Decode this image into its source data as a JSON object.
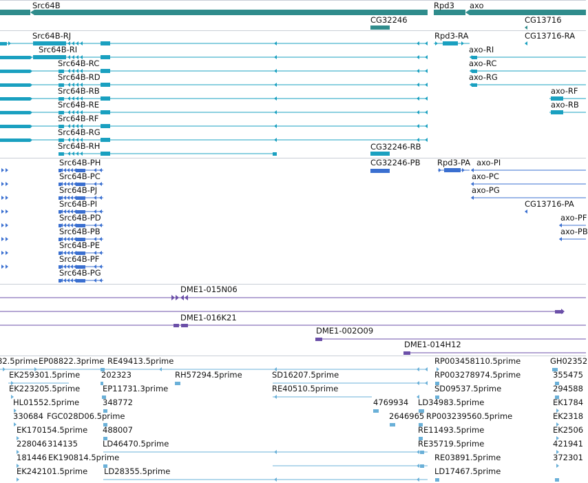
{
  "colors": {
    "gene": "#2f8c8c",
    "transcript": "#1aa0c0",
    "protein": "#3a6fd0",
    "clone": "#6b4fa8",
    "est": "#6ab0d8",
    "separator": "#c9ced6",
    "text": "#111111"
  },
  "tracks": {
    "genes": {
      "labels": [
        {
          "name": "src64b-gene-label",
          "text": "Src64B"
        },
        {
          "name": "rpd3-gene-label",
          "text": "Rpd3"
        },
        {
          "name": "axo-gene-label",
          "text": "axo"
        },
        {
          "name": "cg32246-gene-label",
          "text": "CG32246"
        },
        {
          "name": "cg13716-gene-label",
          "text": "CG13716"
        }
      ]
    },
    "transcripts": {
      "labels": [
        {
          "name": "src64b-rj-label",
          "text": "Src64B-RJ"
        },
        {
          "name": "src64b-ri-label",
          "text": "Src64B-RI"
        },
        {
          "name": "src64b-rc-label",
          "text": "Src64B-RC"
        },
        {
          "name": "src64b-rd-label",
          "text": "Src64B-RD"
        },
        {
          "name": "src64b-rb-label",
          "text": "Src64B-RB"
        },
        {
          "name": "src64b-re-label",
          "text": "Src64B-RE"
        },
        {
          "name": "src64b-rf-label",
          "text": "Src64B-RF"
        },
        {
          "name": "src64b-rg-label",
          "text": "Src64B-RG"
        },
        {
          "name": "src64b-rh-label",
          "text": "Src64B-RH"
        },
        {
          "name": "rpd3-ra-label",
          "text": "Rpd3-RA"
        },
        {
          "name": "cg13716-ra-label",
          "text": "CG13716-RA"
        },
        {
          "name": "axo-ri-label",
          "text": "axo-RI"
        },
        {
          "name": "axo-rc-label",
          "text": "axo-RC"
        },
        {
          "name": "axo-rg-label",
          "text": "axo-RG"
        },
        {
          "name": "axo-rf-label",
          "text": "axo-RF"
        },
        {
          "name": "axo-rb-label",
          "text": "axo-RB"
        },
        {
          "name": "cg32246-rb-label",
          "text": "CG32246-RB"
        }
      ]
    },
    "proteins": {
      "labels": [
        {
          "name": "src64b-ph-label",
          "text": "Src64B-PH"
        },
        {
          "name": "src64b-pc-label",
          "text": "Src64B-PC"
        },
        {
          "name": "src64b-pj-label",
          "text": "Src64B-PJ"
        },
        {
          "name": "src64b-pi-label",
          "text": "Src64B-PI"
        },
        {
          "name": "src64b-pd-label",
          "text": "Src64B-PD"
        },
        {
          "name": "src64b-pb-label",
          "text": "Src64B-PB"
        },
        {
          "name": "src64b-pe-label",
          "text": "Src64B-PE"
        },
        {
          "name": "src64b-pf-label",
          "text": "Src64B-PF"
        },
        {
          "name": "src64b-pg-label",
          "text": "Src64B-PG"
        },
        {
          "name": "cg32246-pb-label",
          "text": "CG32246-PB"
        },
        {
          "name": "rpd3-pa-label",
          "text": "Rpd3-PA"
        },
        {
          "name": "axo-pi-label",
          "text": "axo-PI"
        },
        {
          "name": "axo-pc-label",
          "text": "axo-PC"
        },
        {
          "name": "axo-pg-label",
          "text": "axo-PG"
        },
        {
          "name": "cg13716-pa-label",
          "text": "CG13716-PA"
        },
        {
          "name": "axo-pf-label",
          "text": "axo-PF"
        },
        {
          "name": "axo-pb-label",
          "text": "axo-PB"
        }
      ]
    },
    "clones": {
      "labels": [
        {
          "name": "dme1-015n06-label",
          "text": "DME1-015N06"
        },
        {
          "name": "dme1-016k21-label",
          "text": "DME1-016K21"
        },
        {
          "name": "dme1-002o09-label",
          "text": "DME1-002O09"
        },
        {
          "name": "dme1-014h12-label",
          "text": "DME1-014H12"
        }
      ]
    },
    "ests": {
      "labels": [
        {
          "name": "est-label",
          "text": "82.5prime"
        },
        {
          "name": "est-label",
          "text": "EP08822.3prime"
        },
        {
          "name": "est-label",
          "text": "RE49413.5prime"
        },
        {
          "name": "est-label",
          "text": "RP003458110.5prime"
        },
        {
          "name": "est-label",
          "text": "GH02352"
        },
        {
          "name": "est-label",
          "text": "EK259301.5prime"
        },
        {
          "name": "est-label",
          "text": "202323"
        },
        {
          "name": "est-label",
          "text": "RH57294.5prime"
        },
        {
          "name": "est-label",
          "text": "SD16207.5prime"
        },
        {
          "name": "est-label",
          "text": "RP003278974.5prime"
        },
        {
          "name": "est-label",
          "text": "355475"
        },
        {
          "name": "est-label",
          "text": "EK223205.5prime"
        },
        {
          "name": "est-label",
          "text": "EP11731.3prime"
        },
        {
          "name": "est-label",
          "text": "RE40510.5prime"
        },
        {
          "name": "est-label",
          "text": "SD09537.5prime"
        },
        {
          "name": "est-label",
          "text": "294588"
        },
        {
          "name": "est-label",
          "text": "HL01552.5prime"
        },
        {
          "name": "est-label",
          "text": "348772"
        },
        {
          "name": "est-label",
          "text": "4769934"
        },
        {
          "name": "est-label",
          "text": "LD34983.5prime"
        },
        {
          "name": "est-label",
          "text": "EK1784"
        },
        {
          "name": "est-label",
          "text": "330684"
        },
        {
          "name": "est-label",
          "text": "FGC028D06.5prime"
        },
        {
          "name": "est-label",
          "text": "2646965"
        },
        {
          "name": "est-label",
          "text": "RP003239560.5prime"
        },
        {
          "name": "est-label",
          "text": "EK2318"
        },
        {
          "name": "est-label",
          "text": "EK170154.5prime"
        },
        {
          "name": "est-label",
          "text": "488007"
        },
        {
          "name": "est-label",
          "text": "RE11493.5prime"
        },
        {
          "name": "est-label",
          "text": "EK2506"
        },
        {
          "name": "est-label",
          "text": "228046"
        },
        {
          "name": "est-label",
          "text": "314135"
        },
        {
          "name": "est-label",
          "text": "LD46470.5prime"
        },
        {
          "name": "est-label",
          "text": "RE35719.5prime"
        },
        {
          "name": "est-label",
          "text": "421941"
        },
        {
          "name": "est-label",
          "text": "181446"
        },
        {
          "name": "est-label",
          "text": "EK190814.5prime"
        },
        {
          "name": "est-label",
          "text": "RE03891.5prime"
        },
        {
          "name": "est-label",
          "text": "372301"
        },
        {
          "name": "est-label",
          "text": "EK242101.5prime"
        },
        {
          "name": "est-label",
          "text": "LD28355.5prime"
        },
        {
          "name": "est-label",
          "text": "LD17467.5prime"
        }
      ]
    }
  }
}
